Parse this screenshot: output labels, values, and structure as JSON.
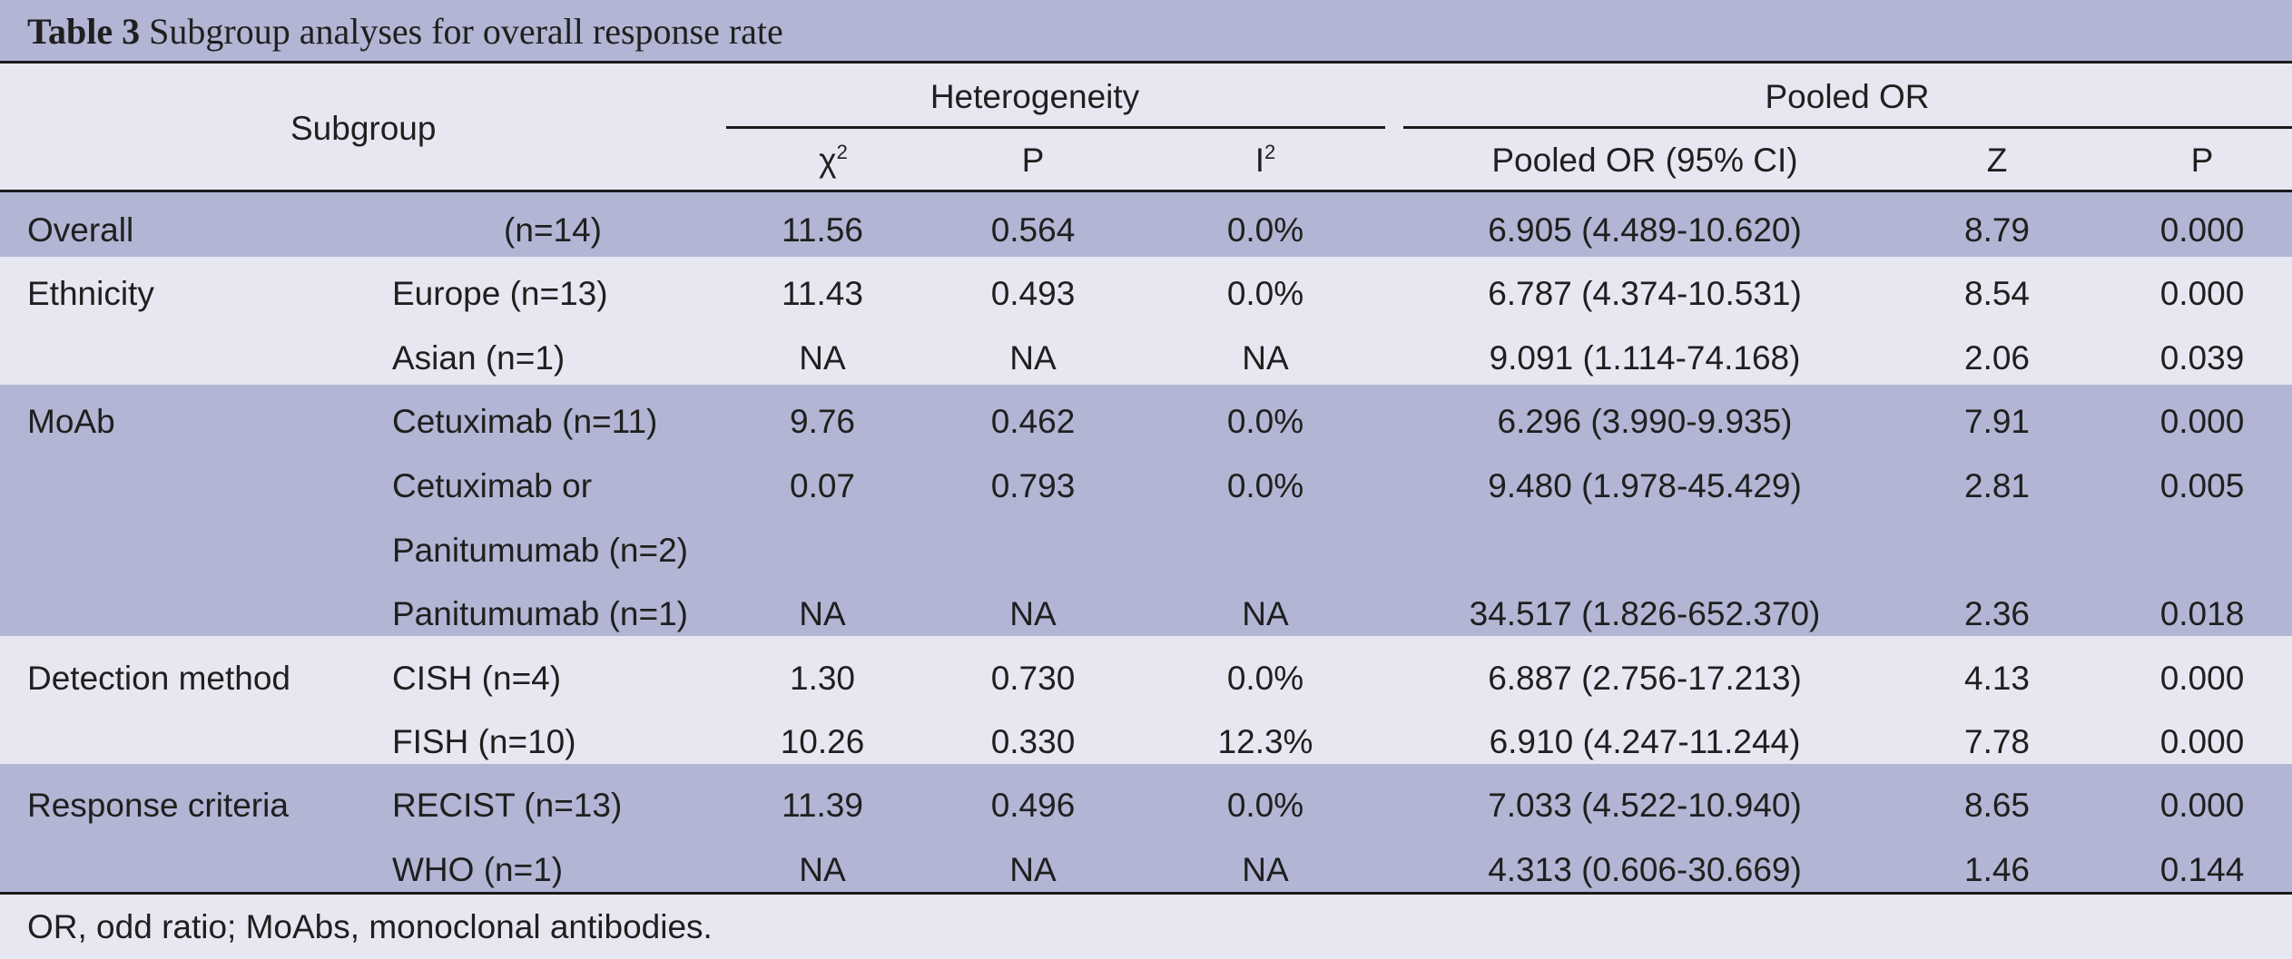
{
  "title": {
    "label": "Table 3",
    "text": "Subgroup analyses for overall response rate"
  },
  "header": {
    "subgroup": "Subgroup",
    "heterogeneity": "Heterogeneity",
    "pooled_group": "Pooled OR",
    "chi_base": "χ",
    "chi_sup": "2",
    "p1": "P",
    "i_base": "I",
    "i_sup": "2",
    "pooled_ci": "Pooled OR (95% CI)",
    "z": "Z",
    "p2": "P"
  },
  "rows": [
    {
      "group": "Overall",
      "sub": "(n=14)",
      "chi2": "11.56",
      "p": "0.564",
      "i2": "0.0%",
      "or": "6.905 (4.489-10.620)",
      "z": "8.79",
      "p2": "0.000"
    },
    {
      "group": "Ethnicity",
      "sub": "Europe (n=13)",
      "chi2": "11.43",
      "p": "0.493",
      "i2": "0.0%",
      "or": "6.787 (4.374-10.531)",
      "z": "8.54",
      "p2": "0.000"
    },
    {
      "group": "",
      "sub": "Asian (n=1)",
      "chi2": "NA",
      "p": "NA",
      "i2": "NA",
      "or": "9.091 (1.114-74.168)",
      "z": "2.06",
      "p2": "0.039"
    },
    {
      "group": "MoAb",
      "sub": "Cetuximab (n=11)",
      "chi2": "9.76",
      "p": "0.462",
      "i2": "0.0%",
      "or": "6.296 (3.990-9.935)",
      "z": "7.91",
      "p2": "0.000"
    },
    {
      "group": "",
      "sub": "Cetuximab or",
      "sub2": "Panitumumab (n=2)",
      "chi2": "0.07",
      "p": "0.793",
      "i2": "0.0%",
      "or": "9.480 (1.978-45.429)",
      "z": "2.81",
      "p2": "0.005"
    },
    {
      "group": "",
      "sub": "Panitumumab (n=1)",
      "chi2": "NA",
      "p": "NA",
      "i2": "NA",
      "or": "34.517 (1.826-652.370)",
      "z": "2.36",
      "p2": "0.018"
    },
    {
      "group": "Detection method",
      "sub": "CISH (n=4)",
      "chi2": "1.30",
      "p": "0.730",
      "i2": "0.0%",
      "or": "6.887 (2.756-17.213)",
      "z": "4.13",
      "p2": "0.000"
    },
    {
      "group": "",
      "sub": "FISH (n=10)",
      "chi2": "10.26",
      "p": "0.330",
      "i2": "12.3%",
      "or": "6.910 (4.247-11.244)",
      "z": "7.78",
      "p2": "0.000"
    },
    {
      "group": "Response criteria",
      "sub": "RECIST (n=13)",
      "chi2": "11.39",
      "p": "0.496",
      "i2": "0.0%",
      "or": "7.033 (4.522-10.940)",
      "z": "8.65",
      "p2": "0.000"
    },
    {
      "group": "",
      "sub": "WHO (n=1)",
      "chi2": "NA",
      "p": "NA",
      "i2": "NA",
      "or": "4.313 (0.606-30.669)",
      "z": "1.46",
      "p2": "0.144"
    }
  ],
  "footnote": "OR, odd ratio; MoAbs, monoclonal antibodies."
}
